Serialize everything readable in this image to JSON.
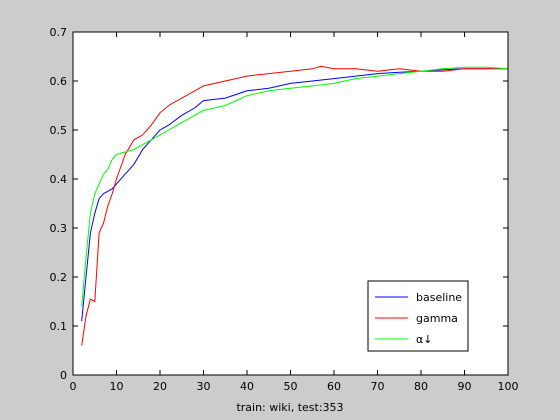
{
  "chart_data": {
    "type": "line",
    "xlabel": "train: wiki, test:353",
    "ylabel": "",
    "xlim": [
      0,
      100
    ],
    "ylim": [
      0,
      0.7
    ],
    "xticks": [
      0,
      10,
      20,
      30,
      40,
      50,
      60,
      70,
      80,
      90,
      100
    ],
    "yticks": [
      0,
      0.1,
      0.2,
      0.3,
      0.4,
      0.5,
      0.6,
      0.7
    ],
    "legend_position": "lower-right",
    "grid": false,
    "series": [
      {
        "name": "baseline",
        "color": "#0000ff",
        "x": [
          2,
          3,
          4,
          5,
          6,
          7,
          8,
          9,
          10,
          12,
          14,
          16,
          18,
          20,
          22,
          25,
          28,
          30,
          35,
          40,
          45,
          50,
          55,
          60,
          65,
          70,
          75,
          80,
          85,
          90,
          95,
          100
        ],
        "y": [
          0.11,
          0.2,
          0.29,
          0.33,
          0.36,
          0.37,
          0.375,
          0.38,
          0.39,
          0.41,
          0.43,
          0.46,
          0.48,
          0.5,
          0.51,
          0.53,
          0.545,
          0.56,
          0.565,
          0.58,
          0.585,
          0.595,
          0.6,
          0.605,
          0.61,
          0.615,
          0.618,
          0.62,
          0.623,
          0.625,
          0.625,
          0.625
        ]
      },
      {
        "name": "gamma",
        "color": "#ff0000",
        "x": [
          2,
          3,
          4,
          5,
          6,
          7,
          8,
          9,
          10,
          12,
          14,
          16,
          18,
          20,
          22,
          25,
          28,
          30,
          35,
          40,
          45,
          50,
          55,
          57,
          60,
          65,
          70,
          75,
          80,
          85,
          90,
          95,
          100
        ],
        "y": [
          0.06,
          0.12,
          0.155,
          0.15,
          0.29,
          0.31,
          0.345,
          0.37,
          0.4,
          0.45,
          0.48,
          0.49,
          0.51,
          0.535,
          0.55,
          0.565,
          0.58,
          0.59,
          0.6,
          0.61,
          0.615,
          0.62,
          0.625,
          0.63,
          0.625,
          0.625,
          0.62,
          0.625,
          0.62,
          0.62,
          0.625,
          0.625,
          0.625
        ]
      },
      {
        "name": "α↓",
        "color": "#00ff00",
        "x": [
          2,
          3,
          4,
          5,
          6,
          7,
          8,
          9,
          10,
          12,
          14,
          16,
          18,
          20,
          22,
          25,
          28,
          30,
          35,
          40,
          45,
          50,
          55,
          60,
          65,
          70,
          75,
          80,
          85,
          90,
          95,
          100
        ],
        "y": [
          0.14,
          0.24,
          0.33,
          0.37,
          0.39,
          0.41,
          0.42,
          0.44,
          0.45,
          0.455,
          0.46,
          0.47,
          0.48,
          0.49,
          0.5,
          0.515,
          0.53,
          0.54,
          0.55,
          0.57,
          0.58,
          0.585,
          0.59,
          0.595,
          0.605,
          0.61,
          0.615,
          0.62,
          0.625,
          0.628,
          0.628,
          0.625
        ]
      }
    ]
  }
}
